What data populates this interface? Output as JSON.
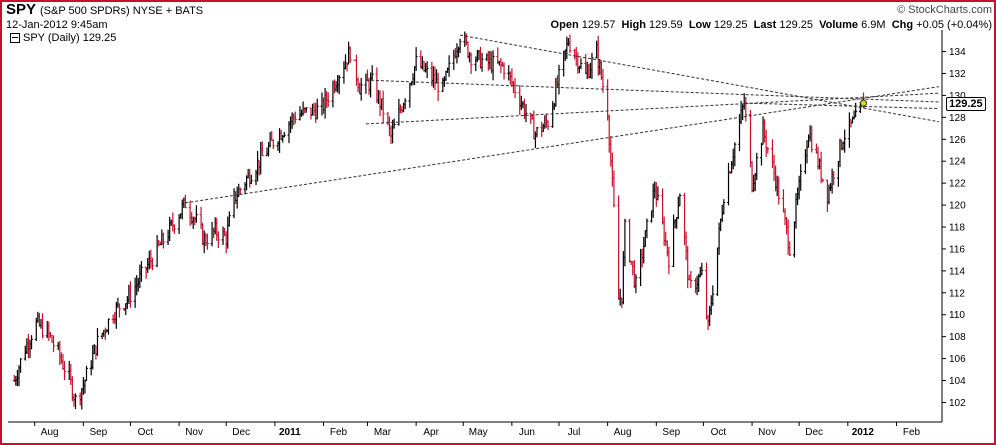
{
  "header": {
    "symbol": "SPY",
    "description": "(S&P 500 SPDRs)  NYSE + BATS",
    "timestamp": "12-Jan-2012 9:45am",
    "brand": "© StockCharts.com",
    "open_label": "Open",
    "open": "129.57",
    "high_label": "High",
    "high": "129.59",
    "low_label": "Low",
    "low": "129.25",
    "last_label": "Last",
    "last": "129.25",
    "volume_label": "Volume",
    "volume": "6.9M",
    "chg_label": "Chg",
    "chg": "+0.05 (+0.04%)"
  },
  "legend": {
    "label": "SPY (Daily) 129.25"
  },
  "colors": {
    "up": "#000000",
    "down": "#c8102e",
    "frame": "#c8102e",
    "trendline": "#333333",
    "grid": "#e6e6e6"
  },
  "chart_data": {
    "type": "line",
    "series": [
      {
        "name": "SPY (Daily)",
        "last": 129.25
      }
    ],
    "x_ticks": [
      {
        "label": "Aug",
        "date": "2010-08-01"
      },
      {
        "label": "Sep",
        "date": "2010-09-01"
      },
      {
        "label": "Oct",
        "date": "2010-10-01"
      },
      {
        "label": "Nov",
        "date": "2010-11-01"
      },
      {
        "label": "Dec",
        "date": "2010-12-01"
      },
      {
        "label": "2011",
        "date": "2011-01-01",
        "bold": true
      },
      {
        "label": "Feb",
        "date": "2011-02-01"
      },
      {
        "label": "Mar",
        "date": "2011-03-01"
      },
      {
        "label": "Apr",
        "date": "2011-04-01"
      },
      {
        "label": "May",
        "date": "2011-05-01"
      },
      {
        "label": "Jun",
        "date": "2011-06-01"
      },
      {
        "label": "Jul",
        "date": "2011-07-01"
      },
      {
        "label": "Aug",
        "date": "2011-08-01"
      },
      {
        "label": "Sep",
        "date": "2011-09-01"
      },
      {
        "label": "Oct",
        "date": "2011-10-01"
      },
      {
        "label": "Nov",
        "date": "2011-11-01"
      },
      {
        "label": "Dec",
        "date": "2011-12-01"
      },
      {
        "label": "2012",
        "date": "2012-01-01",
        "bold": true
      },
      {
        "label": "Feb",
        "date": "2012-02-01"
      }
    ],
    "y_ticks": [
      102,
      104,
      106,
      108,
      110,
      112,
      114,
      116,
      118,
      120,
      122,
      124,
      126,
      128,
      130,
      132,
      134
    ],
    "ylim": [
      100.4,
      135.6
    ],
    "xlim": [
      "2010-07-15",
      "2012-03-01"
    ],
    "price_path": [
      [
        "2010-07-19",
        104.0
      ],
      [
        "2010-07-26",
        107.0
      ],
      [
        "2010-08-02",
        109.2
      ],
      [
        "2010-08-09",
        108.4
      ],
      [
        "2010-08-16",
        106.5
      ],
      [
        "2010-08-23",
        104.2
      ],
      [
        "2010-08-27",
        102.2
      ],
      [
        "2010-09-01",
        103.6
      ],
      [
        "2010-09-10",
        107.5
      ],
      [
        "2010-09-20",
        110.2
      ],
      [
        "2010-09-30",
        111.6
      ],
      [
        "2010-10-12",
        114.5
      ],
      [
        "2010-10-25",
        117.5
      ],
      [
        "2010-11-05",
        120.2
      ],
      [
        "2010-11-12",
        118.5
      ],
      [
        "2010-11-17",
        116.8
      ],
      [
        "2010-11-24",
        117.6
      ],
      [
        "2010-12-01",
        117.0
      ],
      [
        "2010-12-06",
        120.6
      ],
      [
        "2010-12-14",
        122.4
      ],
      [
        "2010-12-31",
        125.8
      ],
      [
        "2011-01-14",
        128.2
      ],
      [
        "2011-01-31",
        128.8
      ],
      [
        "2011-02-08",
        131.2
      ],
      [
        "2011-02-18",
        134.0
      ],
      [
        "2011-02-24",
        130.8
      ],
      [
        "2011-03-04",
        131.2
      ],
      [
        "2011-03-11",
        128.6
      ],
      [
        "2011-03-16",
        126.2
      ],
      [
        "2011-03-24",
        129.6
      ],
      [
        "2011-04-01",
        133.0
      ],
      [
        "2011-04-18",
        130.6
      ],
      [
        "2011-04-29",
        135.5
      ],
      [
        "2011-05-06",
        133.6
      ],
      [
        "2011-05-16",
        133.0
      ],
      [
        "2011-05-27",
        132.6
      ],
      [
        "2011-06-06",
        129.7
      ],
      [
        "2011-06-16",
        126.5
      ],
      [
        "2011-06-24",
        127.6
      ],
      [
        "2011-07-07",
        135.0
      ],
      [
        "2011-07-18",
        131.8
      ],
      [
        "2011-07-25",
        134.0
      ],
      [
        "2011-08-01",
        128.6
      ],
      [
        "2011-08-05",
        119.5
      ],
      [
        "2011-08-08",
        111.4
      ],
      [
        "2011-08-10",
        111.8
      ],
      [
        "2011-08-12",
        117.8
      ],
      [
        "2011-08-19",
        112.6
      ],
      [
        "2011-08-31",
        121.6
      ],
      [
        "2011-09-09",
        115.2
      ],
      [
        "2011-09-16",
        121.2
      ],
      [
        "2011-09-22",
        112.4
      ],
      [
        "2011-09-30",
        113.6
      ],
      [
        "2011-10-04",
        108.8
      ],
      [
        "2011-10-14",
        121.0
      ],
      [
        "2011-10-27",
        129.4
      ],
      [
        "2011-11-01",
        122.0
      ],
      [
        "2011-11-08",
        126.8
      ],
      [
        "2011-11-16",
        122.4
      ],
      [
        "2011-11-25",
        116.2
      ],
      [
        "2011-12-07",
        126.8
      ],
      [
        "2011-12-19",
        121.0
      ],
      [
        "2011-12-29",
        126.2
      ],
      [
        "2012-01-06",
        127.8
      ],
      [
        "2012-01-11",
        129.3
      ]
    ],
    "trendlines": [
      {
        "from": [
          "2011-04-29",
          135.5
        ],
        "to": [
          "2012-02-28",
          127.6
        ]
      },
      {
        "from": [
          "2011-02-28",
          131.4
        ],
        "to": [
          "2012-02-28",
          129.4
        ]
      },
      {
        "from": [
          "2011-02-28",
          127.4
        ],
        "to": [
          "2012-02-28",
          130.2
        ]
      },
      {
        "from": [
          "2010-11-05",
          120.2
        ],
        "to": [
          "2012-02-28",
          130.8
        ]
      },
      {
        "from": [
          "2011-10-27",
          129.3
        ],
        "to": [
          "2012-02-28",
          128.8
        ]
      }
    ],
    "grid": false
  }
}
